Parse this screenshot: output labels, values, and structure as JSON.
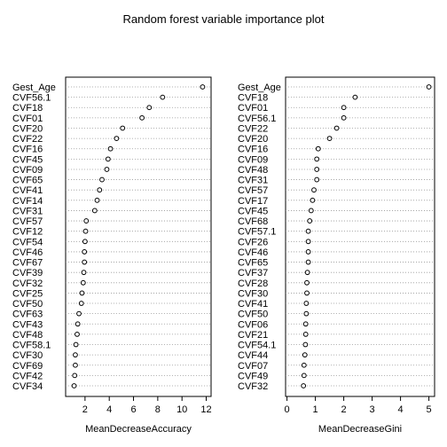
{
  "title": "Random forest variable importance plot",
  "chart_data": [
    {
      "type": "scatter",
      "xlabel": "MeanDecreaseAccuracy",
      "xlim": [
        0.4,
        12.4
      ],
      "xticks": [
        2,
        4,
        6,
        8,
        10,
        12
      ],
      "grid": "dotted horizontal",
      "categories": [
        "Gest_Age",
        "CVF56.1",
        "CVF18",
        "CVF01",
        "CVF20",
        "CVF22",
        "CVF16",
        "CVF45",
        "CVF09",
        "CVF65",
        "CVF41",
        "CVF14",
        "CVF31",
        "CVF57",
        "CVF12",
        "CVF54",
        "CVF46",
        "CVF67",
        "CVF39",
        "CVF32",
        "CVF25",
        "CVF50",
        "CVF63",
        "CVF43",
        "CVF48",
        "CVF58.1",
        "CVF30",
        "CVF69",
        "CVF42",
        "CVF34"
      ],
      "values": [
        11.7,
        8.4,
        7.3,
        6.7,
        5.1,
        4.6,
        4.1,
        3.9,
        3.8,
        3.4,
        3.2,
        3.0,
        2.8,
        2.1,
        2.05,
        2.0,
        1.95,
        1.95,
        1.9,
        1.85,
        1.75,
        1.7,
        1.5,
        1.4,
        1.35,
        1.25,
        1.2,
        1.2,
        1.15,
        1.1
      ]
    },
    {
      "type": "scatter",
      "xlabel": "MeanDecreaseGini",
      "xlim": [
        -0.05,
        5.2
      ],
      "xticks": [
        0,
        1,
        2,
        3,
        4,
        5
      ],
      "grid": "dotted horizontal",
      "categories": [
        "Gest_Age",
        "CVF18",
        "CVF01",
        "CVF56.1",
        "CVF22",
        "CVF20",
        "CVF16",
        "CVF09",
        "CVF48",
        "CVF31",
        "CVF57",
        "CVF17",
        "CVF45",
        "CVF68",
        "CVF57.1",
        "CVF26",
        "CVF46",
        "CVF65",
        "CVF37",
        "CVF28",
        "CVF30",
        "CVF41",
        "CVF50",
        "CVF06",
        "CVF21",
        "CVF54.1",
        "CVF44",
        "CVF07",
        "CVF49",
        "CVF32"
      ],
      "values": [
        5.0,
        2.4,
        2.0,
        2.0,
        1.75,
        1.5,
        1.1,
        1.05,
        1.05,
        1.05,
        0.95,
        0.9,
        0.85,
        0.8,
        0.75,
        0.75,
        0.75,
        0.75,
        0.72,
        0.7,
        0.7,
        0.68,
        0.68,
        0.66,
        0.66,
        0.65,
        0.63,
        0.6,
        0.6,
        0.58
      ]
    }
  ]
}
